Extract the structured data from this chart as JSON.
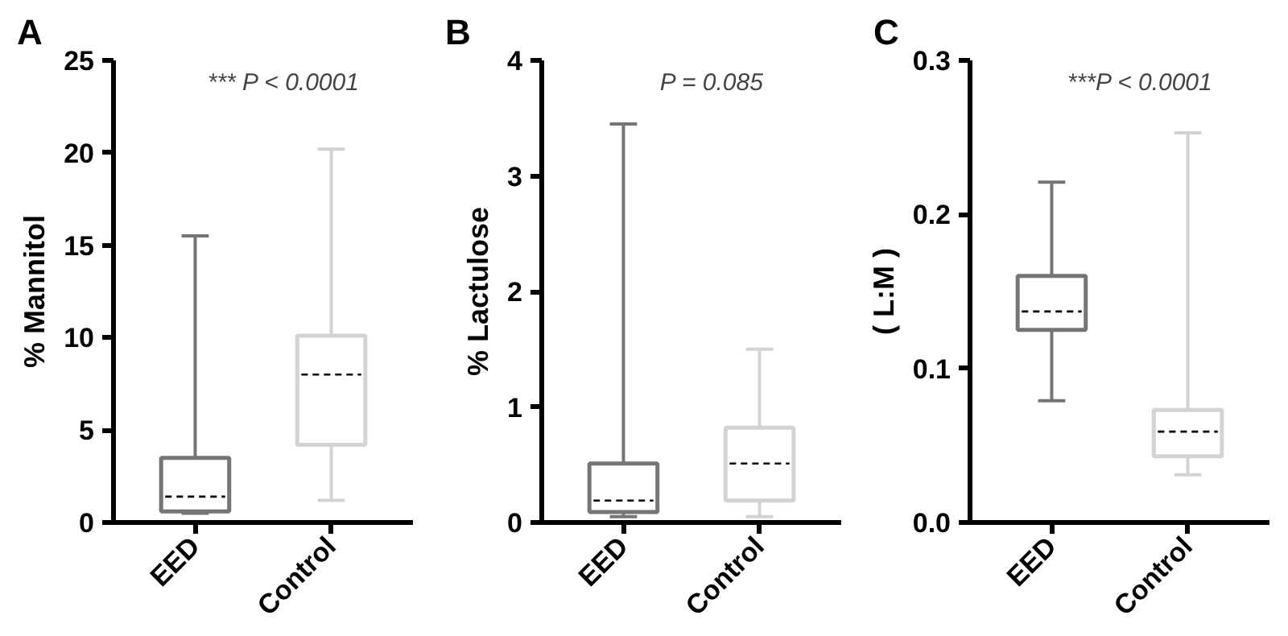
{
  "chart_data": [
    {
      "type": "box",
      "title": "A",
      "ylabel": "% Mannitol",
      "categories": [
        "EED",
        "Control"
      ],
      "colors": [
        "#757575",
        "#d3d3d3"
      ],
      "boxes": [
        {
          "low": 0.5,
          "q1": 0.6,
          "median": 1.4,
          "q3": 3.5,
          "high": 15.5
        },
        {
          "low": 1.2,
          "q1": 4.2,
          "median": 8.0,
          "q3": 10.1,
          "high": 20.2
        }
      ],
      "ylim": [
        0,
        25
      ],
      "yticks": [
        0,
        5,
        10,
        15,
        20,
        25
      ],
      "grid": false,
      "annotations": [
        "*** P < 0.0001"
      ]
    },
    {
      "type": "box",
      "title": "B",
      "ylabel": "% Lactulose",
      "categories": [
        "EED",
        "Control"
      ],
      "colors": [
        "#757575",
        "#d3d3d3"
      ],
      "boxes": [
        {
          "low": 0.05,
          "q1": 0.09,
          "median": 0.19,
          "q3": 0.51,
          "high": 3.45
        },
        {
          "low": 0.05,
          "q1": 0.19,
          "median": 0.51,
          "q3": 0.82,
          "high": 1.5
        }
      ],
      "ylim": [
        0,
        4
      ],
      "yticks": [
        0,
        1,
        2,
        3,
        4
      ],
      "grid": false,
      "annotations": [
        "P = 0.085"
      ]
    },
    {
      "type": "box",
      "title": "C",
      "ylabel": "( L:M )",
      "categories": [
        "EED",
        "Control"
      ],
      "colors": [
        "#757575",
        "#d3d3d3"
      ],
      "boxes": [
        {
          "low": 0.079,
          "q1": 0.125,
          "median": 0.137,
          "q3": 0.16,
          "high": 0.221
        },
        {
          "low": 0.031,
          "q1": 0.043,
          "median": 0.059,
          "q3": 0.073,
          "high": 0.253
        }
      ],
      "ylim": [
        0,
        0.3
      ],
      "yticks": [
        {
          "value": 0,
          "label": "0.0"
        },
        0.1,
        0.2,
        0.3
      ],
      "grid": false,
      "annotations": [
        "***P < 0.0001"
      ]
    }
  ]
}
